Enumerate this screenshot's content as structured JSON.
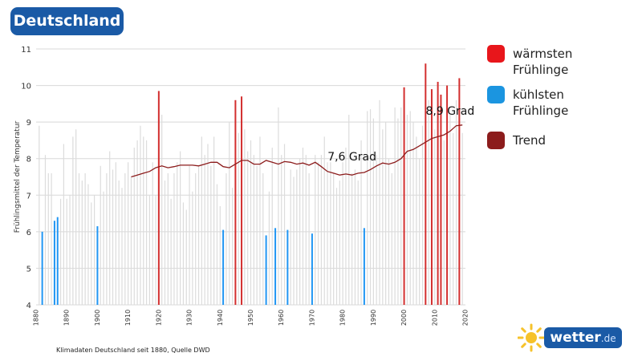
{
  "header": {
    "title": "Deutschland"
  },
  "caption": "Klimadaten Deutschland seit 1880, Quelle DWD",
  "logo": {
    "name": "wetter",
    "tld": ".de",
    "icon": "sun-icon"
  },
  "legend": [
    {
      "label": "wärmsten\nFrühlinge",
      "color": "#e8161b"
    },
    {
      "label": "kühlsten\nFrühlinge",
      "color": "#1b95e0"
    },
    {
      "label": "Trend",
      "color": "#8c1c1c"
    }
  ],
  "colors": {
    "normal": "#dcdcdc",
    "warm": "#d32f2f",
    "cold": "#2196f3",
    "trend": "#8c1c1c",
    "grid": "#d8d8d8"
  },
  "chart_data": {
    "type": "bar",
    "title": "",
    "xlabel": "",
    "ylabel": "Frühlingsmittel der Temperatur",
    "xlim": [
      1880,
      2020
    ],
    "ylim": [
      4,
      11
    ],
    "yticks": [
      4,
      5,
      6,
      7,
      8,
      9,
      10,
      11
    ],
    "xticks": [
      1880,
      1890,
      1900,
      1910,
      1920,
      1930,
      1940,
      1950,
      1960,
      1970,
      1980,
      1990,
      2000,
      2010,
      2020
    ],
    "grid": true,
    "legend_position": "right",
    "years": [
      1881,
      1882,
      1883,
      1884,
      1885,
      1886,
      1887,
      1888,
      1889,
      1890,
      1891,
      1892,
      1893,
      1894,
      1895,
      1896,
      1897,
      1898,
      1899,
      1900,
      1901,
      1902,
      1903,
      1904,
      1905,
      1906,
      1907,
      1908,
      1909,
      1910,
      1911,
      1912,
      1913,
      1914,
      1915,
      1916,
      1917,
      1918,
      1919,
      1920,
      1921,
      1922,
      1923,
      1924,
      1925,
      1926,
      1927,
      1928,
      1929,
      1930,
      1931,
      1932,
      1933,
      1934,
      1935,
      1936,
      1937,
      1938,
      1939,
      1940,
      1941,
      1942,
      1943,
      1944,
      1945,
      1946,
      1947,
      1948,
      1949,
      1950,
      1951,
      1952,
      1953,
      1954,
      1955,
      1956,
      1957,
      1958,
      1959,
      1960,
      1961,
      1962,
      1963,
      1964,
      1965,
      1966,
      1967,
      1968,
      1969,
      1970,
      1971,
      1972,
      1973,
      1974,
      1975,
      1976,
      1977,
      1978,
      1979,
      1980,
      1981,
      1982,
      1983,
      1984,
      1985,
      1986,
      1987,
      1988,
      1989,
      1990,
      1991,
      1992,
      1993,
      1994,
      1995,
      1996,
      1997,
      1998,
      1999,
      2000,
      2001,
      2002,
      2003,
      2004,
      2005,
      2006,
      2007,
      2008,
      2009,
      2010,
      2011,
      2012,
      2013,
      2014,
      2015,
      2016,
      2017,
      2018,
      2019
    ],
    "values": [
      8.9,
      6.0,
      8.1,
      7.6,
      7.6,
      6.3,
      6.4,
      6.9,
      8.4,
      6.9,
      7.0,
      8.6,
      8.8,
      7.6,
      7.4,
      7.6,
      7.3,
      6.8,
      7.0,
      6.15,
      7.8,
      7.1,
      7.6,
      8.2,
      7.7,
      7.9,
      7.4,
      7.2,
      7.6,
      7.9,
      7.5,
      8.3,
      8.5,
      8.9,
      8.6,
      8.5,
      7.0,
      7.9,
      7.0,
      9.85,
      9.2,
      7.4,
      7.6,
      6.9,
      7.6,
      7.9,
      8.2,
      6.8,
      6.6,
      7.8,
      7.1,
      7.6,
      7.8,
      8.6,
      8.1,
      8.4,
      7.8,
      8.6,
      7.3,
      6.7,
      6.05,
      7.6,
      9.0,
      7.2,
      9.6,
      8.7,
      9.7,
      8.8,
      8.2,
      8.5,
      8.1,
      7.8,
      8.6,
      7.6,
      5.9,
      7.1,
      8.3,
      6.1,
      9.4,
      8.1,
      8.4,
      6.05,
      7.7,
      7.5,
      7.7,
      8.0,
      8.3,
      8.1,
      7.6,
      5.95,
      8.1,
      7.9,
      8.1,
      8.6,
      7.9,
      7.9,
      7.6,
      7.2,
      7.4,
      7.9,
      8.3,
      9.2,
      7.6,
      7.7,
      7.4,
      8.5,
      6.1,
      9.3,
      9.35,
      9.1,
      8.1,
      9.6,
      8.8,
      9.0,
      8.0,
      7.6,
      9.4,
      9.1,
      9.4,
      9.95,
      9.2,
      9.3,
      9.0,
      8.6,
      8.0,
      8.9,
      10.6,
      9.6,
      9.9,
      8.8,
      10.1,
      9.75,
      8.5,
      10.0,
      9.2,
      8.7,
      9.6,
      10.2,
      8.7
    ],
    "highlight_warm": [
      1920,
      1945,
      1947,
      2000,
      2007,
      2009,
      2011,
      2012,
      2014,
      2018
    ],
    "highlight_cold": [
      1882,
      1886,
      1887,
      1900,
      1941,
      1955,
      1958,
      1962,
      1970,
      1987
    ],
    "trend": {
      "x": [
        1911,
        1913,
        1915,
        1917,
        1919,
        1921,
        1923,
        1925,
        1927,
        1929,
        1931,
        1933,
        1935,
        1937,
        1939,
        1941,
        1943,
        1945,
        1947,
        1949,
        1951,
        1953,
        1955,
        1957,
        1959,
        1961,
        1963,
        1965,
        1967,
        1969,
        1971,
        1973,
        1975,
        1977,
        1979,
        1981,
        1983,
        1985,
        1987,
        1989,
        1991,
        1993,
        1995,
        1997,
        1999,
        2001,
        2003,
        2005,
        2007,
        2009,
        2011,
        2013,
        2015,
        2017,
        2019
      ],
      "y": [
        7.5,
        7.55,
        7.6,
        7.65,
        7.75,
        7.8,
        7.75,
        7.78,
        7.82,
        7.82,
        7.82,
        7.8,
        7.85,
        7.9,
        7.9,
        7.78,
        7.75,
        7.85,
        7.95,
        7.95,
        7.85,
        7.85,
        7.95,
        7.9,
        7.85,
        7.92,
        7.9,
        7.85,
        7.88,
        7.82,
        7.9,
        7.78,
        7.65,
        7.6,
        7.55,
        7.58,
        7.55,
        7.6,
        7.62,
        7.7,
        7.8,
        7.88,
        7.85,
        7.9,
        8.0,
        8.2,
        8.25,
        8.35,
        8.45,
        8.55,
        8.6,
        8.65,
        8.75,
        8.9,
        8.92
      ]
    },
    "annotations": [
      {
        "text": "7,6 Grad",
        "x": 1983,
        "y": 7.95
      },
      {
        "text": "8,9 Grad",
        "x": 2015,
        "y": 9.2
      }
    ]
  }
}
